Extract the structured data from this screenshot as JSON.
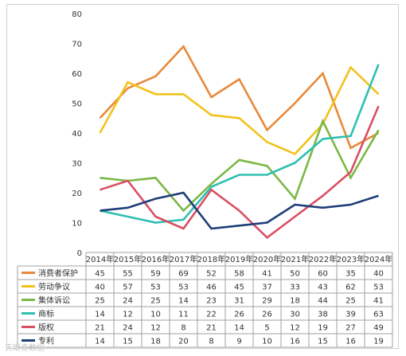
{
  "chart_data": {
    "type": "line",
    "categories": [
      "2014年",
      "2015年",
      "2016年",
      "2017年",
      "2018年",
      "2019年",
      "2020年",
      "2021年",
      "2022年",
      "2023年",
      "2024年"
    ],
    "ylim": [
      0,
      80
    ],
    "yticks": [
      0,
      10,
      20,
      30,
      40,
      50,
      60,
      70,
      80
    ],
    "grid": false,
    "legend": "data-table-below",
    "series": [
      {
        "name": "消费者保护",
        "color": "#e8893a",
        "values": [
          45,
          55,
          59,
          69,
          52,
          58,
          41,
          50,
          60,
          35,
          40
        ]
      },
      {
        "name": "劳动争议",
        "color": "#f2c21b",
        "values": [
          40,
          57,
          53,
          53,
          46,
          45,
          37,
          33,
          43,
          62,
          53
        ]
      },
      {
        "name": "集体诉讼",
        "color": "#7bb846",
        "values": [
          25,
          24,
          25,
          14,
          23,
          31,
          29,
          18,
          44,
          25,
          41
        ]
      },
      {
        "name": "商标",
        "color": "#2ebfb3",
        "values": [
          14,
          12,
          10,
          11,
          22,
          26,
          26,
          30,
          38,
          39,
          63
        ]
      },
      {
        "name": "版权",
        "color": "#d94f64",
        "values": [
          21,
          24,
          12,
          8,
          21,
          14,
          5,
          12,
          19,
          27,
          49
        ]
      },
      {
        "name": "专利",
        "color": "#1f3e7a",
        "values": [
          14,
          15,
          18,
          20,
          8,
          9,
          10,
          16,
          15,
          16,
          19
        ]
      }
    ]
  },
  "watermark": "天眼查数据"
}
